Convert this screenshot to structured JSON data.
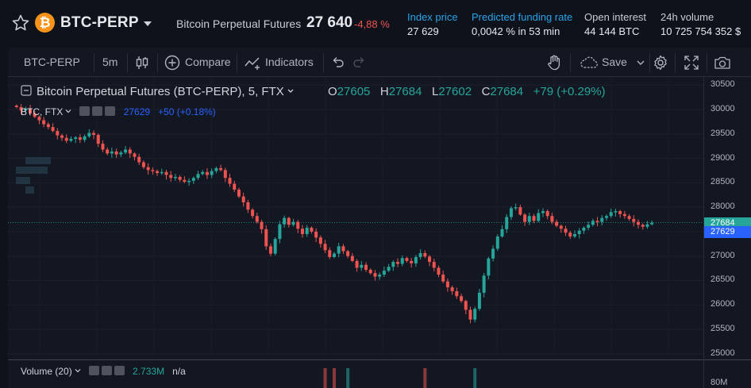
{
  "header": {
    "symbol": "BTC-PERP",
    "coin_glyph": "₿",
    "full_name": "Bitcoin Perpetual Futures",
    "last_price": "27 640",
    "change": "-4,88 %",
    "stats": [
      {
        "label": "Index price",
        "value": "27 629"
      },
      {
        "label": "Predicted funding rate",
        "value": "0,0042 %",
        "extra": " in 53 min"
      },
      {
        "label": "Open interest",
        "value": "44 144 BTC"
      },
      {
        "label": "24h volume",
        "value": "10 725 754 352 $"
      }
    ]
  },
  "toolbar": {
    "symbol": "BTC-PERP",
    "interval": "5m",
    "compare": "Compare",
    "indicators": "Indicators",
    "save": "Save"
  },
  "legend": {
    "title": "Bitcoin Perpetual Futures (BTC-PERP), 5, FTX",
    "o_label": "O",
    "o": "27605",
    "h_label": "H",
    "h": "27684",
    "l_label": "L",
    "l": "27602",
    "c_label": "C",
    "c": "27684",
    "chg": "+79 (+0.29%)",
    "sub_title": "BTC, FTX",
    "sub_value": "27629",
    "sub_chg": "+50 (+0.18%)"
  },
  "volume": {
    "label": "Volume (20)",
    "value": "2.733M",
    "na": "n/a",
    "axis_label": "80M"
  },
  "colors": {
    "up": "#26a69a",
    "down": "#ef5350",
    "accent": "#2962ff",
    "bitcoin": "#f7931a"
  },
  "chart_data": {
    "type": "candlestick",
    "y_ticks": [
      30500,
      30000,
      29500,
      29000,
      28500,
      28000,
      27500,
      27000,
      26500,
      26000,
      25500,
      25000
    ],
    "ylim": [
      24900,
      30650
    ],
    "price_tags": [
      {
        "label": "27684",
        "value": 27684,
        "color": "#26a69a"
      },
      {
        "label": "27629",
        "value": 27629,
        "color": "#2962ff"
      }
    ],
    "closes": [
      30050,
      29980,
      30020,
      29920,
      29850,
      29780,
      29700,
      29640,
      29560,
      29470,
      29420,
      29360,
      29400,
      29430,
      29380,
      29450,
      29520,
      29480,
      29300,
      29180,
      29100,
      29140,
      29080,
      29120,
      29180,
      29100,
      29030,
      28920,
      28820,
      28760,
      28740,
      28700,
      28720,
      28660,
      28600,
      28620,
      28560,
      28520,
      28540,
      28600,
      28680,
      28720,
      28660,
      28740,
      28800,
      28760,
      28600,
      28480,
      28360,
      28220,
      28100,
      27950,
      27820,
      27700,
      27550,
      27200,
      27050,
      27350,
      27650,
      27780,
      27640,
      27700,
      27560,
      27450,
      27580,
      27500,
      27380,
      27250,
      27120,
      26980,
      27050,
      27200,
      27100,
      27000,
      26900,
      26760,
      26820,
      26720,
      26650,
      26580,
      26620,
      26700,
      26780,
      26880,
      26840,
      26960,
      26900,
      26850,
      26980,
      27060,
      26990,
      26880,
      26760,
      26620,
      26480,
      26360,
      26280,
      26180,
      26080,
      25900,
      25700,
      25920,
      26250,
      26600,
      26950,
      27150,
      27400,
      27550,
      27800,
      27980,
      28000,
      27850,
      27700,
      27820,
      27720,
      27880,
      27920,
      27820,
      27700,
      27620,
      27560,
      27480,
      27400,
      27450,
      27520,
      27580,
      27640,
      27720,
      27700,
      27780,
      27820,
      27900,
      27920,
      27860,
      27820,
      27760,
      27700,
      27640,
      27600,
      27650,
      27684
    ],
    "volume_markers": [
      {
        "x_index": 68,
        "color": "#ef5350"
      },
      {
        "x_index": 70,
        "color": "#ef5350"
      },
      {
        "x_index": 73,
        "color": "#26a69a"
      },
      {
        "x_index": 90,
        "color": "#ef5350"
      },
      {
        "x_index": 101,
        "color": "#26a69a"
      }
    ]
  }
}
